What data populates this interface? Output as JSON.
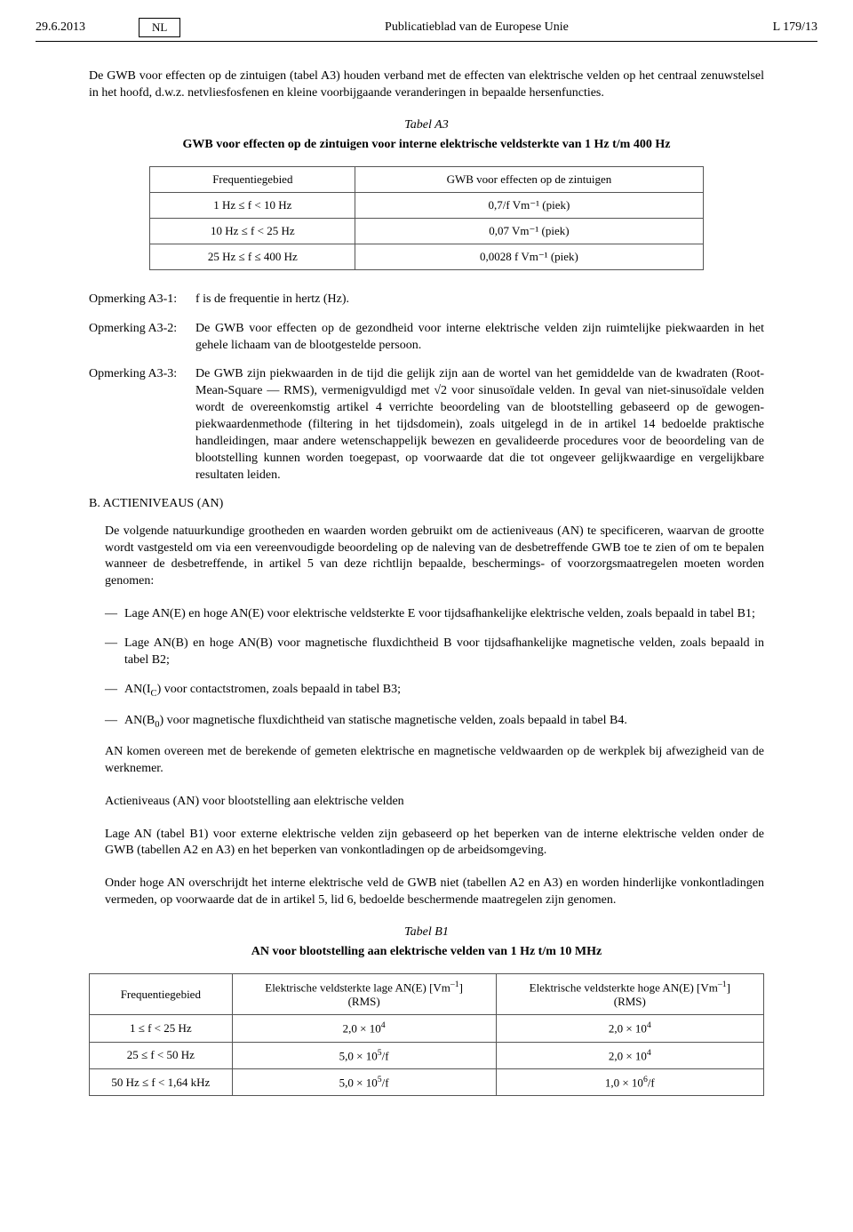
{
  "header": {
    "date": "29.6.2013",
    "lang": "NL",
    "title": "Publicatieblad van de Europese Unie",
    "page": "L 179/13"
  },
  "intro": "De GWB voor effecten op de zintuigen (tabel A3) houden verband met de effecten van elektrische velden op het centraal zenuwstelsel in het hoofd, d.w.z. netvliesfosfenen en kleine voorbijgaande veranderingen in bepaalde hersenfuncties.",
  "tableA3": {
    "label": "Tabel A3",
    "caption": "GWB voor effecten op de zintuigen voor interne elektrische veldsterkte van 1 Hz t/m 400 Hz",
    "col1": "Frequentiegebied",
    "col2": "GWB voor effecten op de zintuigen",
    "rows": [
      {
        "freq": "1 Hz ≤ f < 10 Hz",
        "val": "0,7/f Vm⁻¹ (piek)"
      },
      {
        "freq": "10 Hz ≤ f < 25 Hz",
        "val": "0,07 Vm⁻¹ (piek)"
      },
      {
        "freq": "25 Hz ≤ f ≤ 400 Hz",
        "val": "0,0028 f Vm⁻¹ (piek)"
      }
    ]
  },
  "notes": {
    "a31_label": "Opmerking A3-1:",
    "a31": "f is de frequentie in hertz (Hz).",
    "a32_label": "Opmerking A3-2:",
    "a32": "De GWB voor effecten op de gezondheid voor interne elektrische velden zijn ruimtelijke piekwaarden in het gehele lichaam van de blootgestelde persoon.",
    "a33_label": "Opmerking A3-3:",
    "a33": "De GWB zijn piekwaarden in de tijd die gelijk zijn aan de wortel van het gemiddelde van de kwadraten (Root-Mean-Square — RMS), vermenigvuldigd met √2 voor sinusoïdale velden. In geval van niet-sinusoïdale velden wordt de overeenkomstig artikel 4 verrichte beoordeling van de blootstelling gebaseerd op de gewogen-piekwaardenmethode (filtering in het tijdsdomein), zoals uitgelegd in de in artikel 14 bedoelde praktische handleidingen, maar andere wetenschappelijk bewezen en gevalideerde procedures voor de beoordeling van de blootstelling kunnen worden toegepast, op voorwaarde dat die tot ongeveer gelijkwaardige en vergelijkbare resultaten leiden."
  },
  "sectionB": {
    "head": "B. ACTIENIVEAUS (AN)",
    "intro": "De volgende natuurkundige grootheden en waarden worden gebruikt om de actieniveaus (AN) te specificeren, waarvan de grootte wordt vastgesteld om via een vereenvoudigde beoordeling op de naleving van de desbetreffende GWB toe te zien of om te bepalen wanneer de desbetreffende, in artikel 5 van deze richtlijn bepaalde, beschermings- of voorzorgsmaatregelen moeten worden genomen:",
    "b1_dash": "—",
    "b1": "Lage AN(E) en hoge AN(E) voor elektrische veldsterkte E voor tijdsafhankelijke elektrische velden, zoals bepaald in tabel B1;",
    "b2": "Lage AN(B) en hoge AN(B) voor magnetische fluxdichtheid B voor tijdsafhankelijke magnetische velden, zoals bepaald in tabel B2;",
    "b3_html": "AN(I<sub>C</sub>) voor contactstromen, zoals bepaald in tabel B3;",
    "b4_html": "AN(B<sub>0</sub>) voor magnetische fluxdichtheid van statische magnetische velden, zoals bepaald in tabel B4.",
    "p1": "AN komen overeen met de berekende of gemeten elektrische en magnetische veldwaarden op de werkplek bij afwezigheid van de werknemer.",
    "p2": "Actieniveaus (AN) voor blootstelling aan elektrische velden",
    "p3": "Lage AN (tabel B1) voor externe elektrische velden zijn gebaseerd op het beperken van de interne elektrische velden onder de GWB (tabellen A2 en A3) en het beperken van vonkontladingen op de arbeidsomgeving.",
    "p4": "Onder hoge AN overschrijdt het interne elektrische veld de GWB niet (tabellen A2 en A3) en worden hinderlijke vonkontladingen vermeden, op voorwaarde dat de in artikel 5, lid 6, bedoelde beschermende maatregelen zijn genomen."
  },
  "tableB1": {
    "label": "Tabel B1",
    "caption": "AN voor blootstelling aan elektrische velden van 1 Hz t/m 10 MHz",
    "col1": "Frequentiegebied",
    "col2_html": "Elektrische veldsterkte lage AN(E) [Vm<sup>–1</sup>]<br>(RMS)",
    "col3_html": "Elektrische veldsterkte hoge AN(E) [Vm<sup>–1</sup>]<br>(RMS)",
    "rows": [
      {
        "freq": "1 ≤ f < 25 Hz",
        "low_html": "2,0 × 10<sup>4</sup>",
        "high_html": "2,0 × 10<sup>4</sup>"
      },
      {
        "freq": "25 ≤ f < 50 Hz",
        "low_html": "5,0 × 10<sup>5</sup>/f",
        "high_html": "2,0 × 10<sup>4</sup>"
      },
      {
        "freq": "50 Hz ≤ f < 1,64 kHz",
        "low_html": "5,0 × 10<sup>5</sup>/f",
        "high_html": "1,0 × 10<sup>6</sup>/f"
      }
    ]
  }
}
